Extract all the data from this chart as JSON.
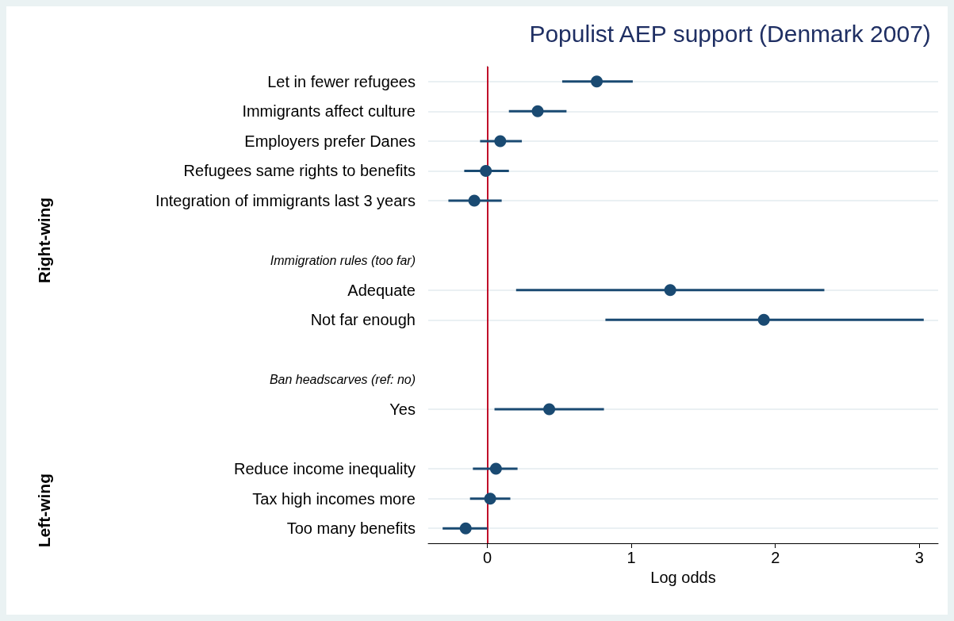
{
  "chart_data": {
    "type": "scatter",
    "title": "Populist AEP support (Denmark 2007)",
    "xlabel": "Log odds",
    "orientation": "horizontal",
    "categories": [
      "Let in fewer refugees",
      "Immigrants affect culture",
      "Employers prefer Danes",
      "Refugees same rights to benefits",
      "Integration of immigrants last 3 years",
      null,
      "Immigration rules (too far)",
      "Adequate",
      "Not far enough",
      null,
      "Ban headscarves (ref: no)",
      "Yes",
      null,
      "Reduce income inequality",
      "Tax high incomes more",
      "Too many benefits"
    ],
    "series": [
      {
        "color": "#1a4a72",
        "values": [
          0.76,
          0.35,
          0.09,
          -0.01,
          -0.09,
          null,
          null,
          1.27,
          1.92,
          null,
          null,
          0.43,
          null,
          0.06,
          0.02,
          -0.15
        ],
        "errors": [
          [
            0.52,
            1.01
          ],
          [
            0.15,
            0.55
          ],
          [
            -0.05,
            0.24
          ],
          [
            -0.16,
            0.15
          ],
          [
            -0.27,
            0.1
          ],
          null,
          null,
          [
            0.2,
            2.34
          ],
          [
            0.82,
            3.03
          ],
          null,
          null,
          [
            0.05,
            0.81
          ],
          null,
          [
            -0.1,
            0.21
          ],
          [
            -0.12,
            0.16
          ],
          [
            -0.31,
            0.0
          ]
        ]
      }
    ],
    "xlim": [
      -0.41,
      3.13
    ],
    "xticks": [
      0,
      1,
      2,
      3
    ],
    "grid": "y",
    "marker": "circle",
    "ref_lines": [
      {
        "axis": "x",
        "value": 0,
        "color": "#c0102a"
      }
    ],
    "annotations": [
      "Right-wing",
      "Left-wing"
    ]
  }
}
